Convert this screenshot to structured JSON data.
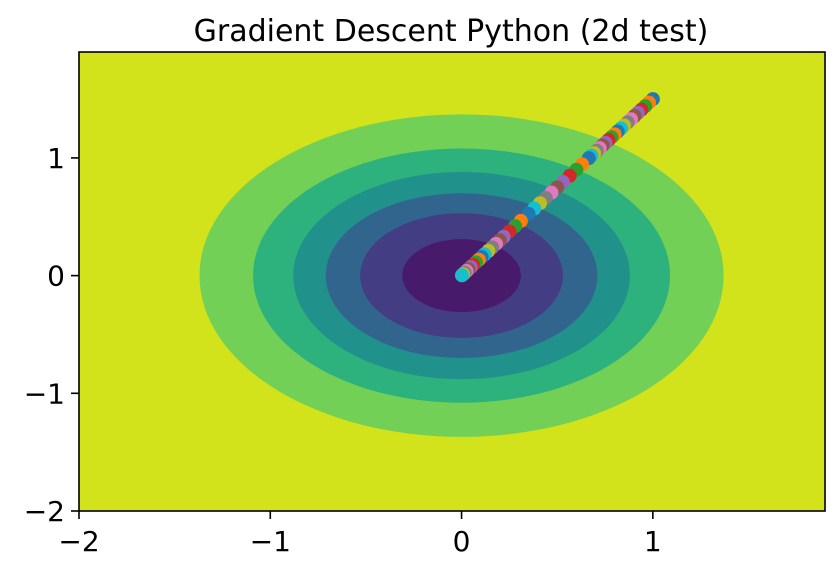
{
  "chart_data": {
    "type": "scatter",
    "title": "Gradient Descent Python (2d test)",
    "xlabel": "",
    "ylabel": "",
    "xlim": [
      -2,
      1.9
    ],
    "ylim": [
      -2,
      1.9
    ],
    "x_ticks": [
      -2,
      -1,
      0,
      1
    ],
    "y_ticks": [
      -2,
      -1,
      0,
      1
    ],
    "x_tick_labels": [
      "−2",
      "−1",
      "0",
      "1"
    ],
    "y_tick_labels": [
      "−2",
      "−1",
      "0",
      "1"
    ],
    "background": {
      "type": "filled_contour",
      "function": "x^2 + y^2 with elliptical levels",
      "colors": [
        "#d2e21b",
        "#73d056",
        "#2db27d",
        "#21918c",
        "#32658e",
        "#433d84",
        "#481a6c"
      ],
      "ellipse_semi_axes": [
        [
          1.37,
          1.37
        ],
        [
          1.09,
          1.08
        ],
        [
          0.88,
          0.88
        ],
        [
          0.71,
          0.7
        ],
        [
          0.53,
          0.53
        ],
        [
          0.31,
          0.31
        ]
      ]
    },
    "point_colors": [
      "#1f77b4",
      "#ff7f0e",
      "#2ca02c",
      "#d62728",
      "#9467bd",
      "#8c564b",
      "#e377c2",
      "#7f7f7f",
      "#bcbd22",
      "#17becf"
    ],
    "points": {
      "x": [
        1.0,
        0.98,
        0.96,
        0.94,
        0.922,
        0.904,
        0.886,
        0.868,
        0.85,
        0.833,
        0.816,
        0.8,
        0.784,
        0.768,
        0.752,
        0.737,
        0.722,
        0.707,
        0.693,
        0.679,
        0.665,
        0.63,
        0.6,
        0.565,
        0.53,
        0.5,
        0.47,
        0.44,
        0.41,
        0.38,
        0.35,
        0.31,
        0.28,
        0.25,
        0.22,
        0.2,
        0.18,
        0.16,
        0.14,
        0.12,
        0.105,
        0.09,
        0.075,
        0.06,
        0.048,
        0.036,
        0.026,
        0.016,
        0.008,
        0.002
      ],
      "y": [
        1.5,
        1.47,
        1.44,
        1.41,
        1.383,
        1.356,
        1.329,
        1.302,
        1.275,
        1.25,
        1.224,
        1.2,
        1.176,
        1.152,
        1.128,
        1.106,
        1.083,
        1.061,
        1.04,
        1.019,
        0.998,
        0.945,
        0.9,
        0.848,
        0.795,
        0.75,
        0.705,
        0.66,
        0.615,
        0.57,
        0.525,
        0.465,
        0.42,
        0.375,
        0.33,
        0.3,
        0.27,
        0.24,
        0.21,
        0.18,
        0.158,
        0.135,
        0.113,
        0.09,
        0.072,
        0.054,
        0.039,
        0.024,
        0.012,
        0.003
      ]
    }
  }
}
